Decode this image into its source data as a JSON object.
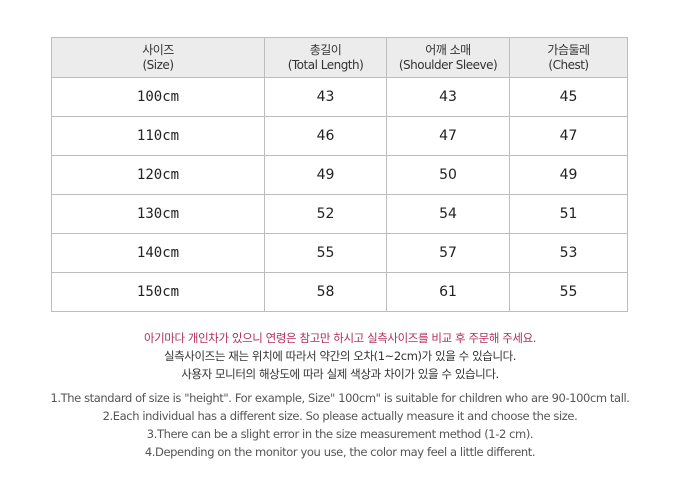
{
  "table": {
    "headers": [
      {
        "ko": "사이즈",
        "en": "(Size)"
      },
      {
        "ko": "총길이",
        "en": "(Total Length)"
      },
      {
        "ko": "어깨 소매",
        "en": "(Shoulder Sleeve)"
      },
      {
        "ko": "가슴둘레",
        "en": "(Chest)"
      }
    ],
    "rows": [
      [
        "100cm",
        "43",
        "43",
        "45"
      ],
      [
        "110cm",
        "46",
        "47",
        "47"
      ],
      [
        "120cm",
        "49",
        "50",
        "49"
      ],
      [
        "130cm",
        "52",
        "54",
        "51"
      ],
      [
        "140cm",
        "55",
        "57",
        "53"
      ],
      [
        "150cm",
        "58",
        "61",
        "55"
      ]
    ]
  },
  "notes_ko": [
    "아기마다 개인차가 있으니 연령은 참고만 하시고 실측사이즈를 비교 후 주문해 주세요.",
    "실측사이즈는 재는 위치에 따라서 약간의  오차(1~2cm)가 있을 수 있습니다.",
    "사용자 모니터의 해상도에 따라 실제 색상과 차이가 있을 수 있습니다."
  ],
  "notes_en": [
    "1.The standard of size is \"height\". For example,  Size\" 100cm\" is suitable for children who are 90-100cm tall.",
    "2.Each individual has a different size. So please actually measure it and choose the size.",
    "3.There can be a slight error in the size measurement method (1-2 cm).",
    "4.Depending on the monitor you use, the color may feel a little different."
  ],
  "colors": {
    "accent": "#b0305a",
    "header_bg": "#ececec"
  }
}
